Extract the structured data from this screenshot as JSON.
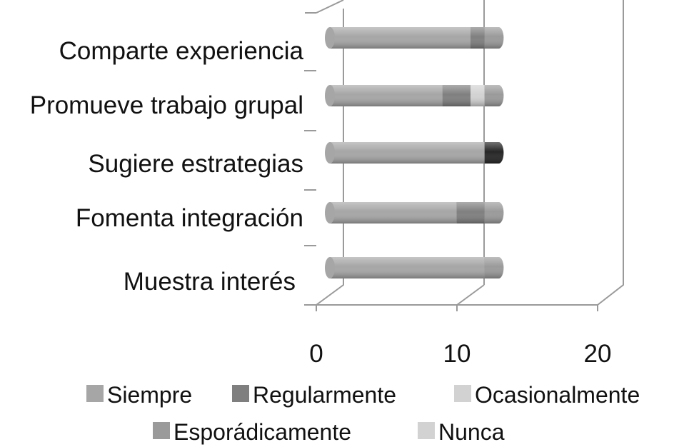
{
  "chart_data": {
    "type": "bar",
    "orientation": "horizontal",
    "stacked": true,
    "three_d": true,
    "categories": [
      "Muestra interés",
      "Fomenta  integración",
      "Sugiere estrategias",
      "Promueve trabajo grupal",
      "Comparte experiencia"
    ],
    "series": [
      {
        "name": "Siempre",
        "color": "#a6a6a6",
        "values": [
          11,
          9,
          11,
          8,
          10
        ]
      },
      {
        "name": "Regularmente",
        "color": "#7f7f7f",
        "values": [
          0,
          2,
          0,
          2,
          1
        ]
      },
      {
        "name": "Ocasionalmente",
        "color": "#d2d2d2",
        "values": [
          0,
          0,
          0,
          1,
          0
        ]
      },
      {
        "name": "Esporádicamente",
        "color": "#9a9a9a",
        "values": [
          1,
          1,
          0,
          1,
          1
        ]
      },
      {
        "name": "Nunca",
        "color": "#262626",
        "values": [
          0,
          0,
          1,
          0,
          0
        ]
      }
    ],
    "xlim": [
      0,
      20
    ],
    "xticks": [
      "0",
      "10",
      "20"
    ],
    "grid": true,
    "legend_position": "bottom"
  }
}
